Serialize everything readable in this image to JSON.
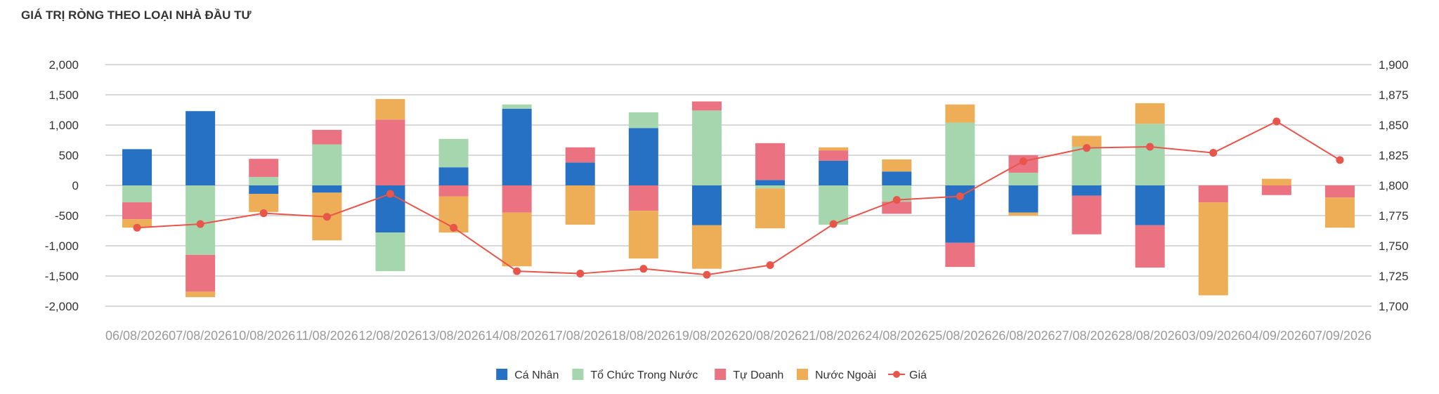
{
  "chart_data": {
    "type": "bar",
    "stacked": true,
    "title": "GIÁ TRỊ RÒNG THEO LOẠI NHÀ ĐẦU TƯ",
    "categories": [
      "06/08/2026",
      "07/08/2026",
      "10/08/2026",
      "11/08/2026",
      "12/08/2026",
      "13/08/2026",
      "14/08/2026",
      "17/08/2026",
      "18/08/2026",
      "19/08/2026",
      "20/08/2026",
      "21/08/2026",
      "24/08/2026",
      "25/08/2026",
      "26/08/2026",
      "27/08/2026",
      "28/08/2026",
      "03/09/2026",
      "04/09/2026",
      "07/09/2026"
    ],
    "ylim": [
      -2000,
      2000
    ],
    "yticks": [
      "2,000",
      "1,500",
      "1,000",
      "500",
      "0",
      "-500",
      "-1,000",
      "-1,500",
      "-2,000"
    ],
    "y2lim": [
      1700,
      1900
    ],
    "y2ticks": [
      "1,900",
      "1,875",
      "1,850",
      "1,825",
      "1,800",
      "1,775",
      "1,750",
      "1,725",
      "1,700"
    ],
    "grid": true,
    "legend_position": "bottom",
    "series": [
      {
        "name": "Cá Nhân",
        "color": "#2771c4",
        "values": [
          600,
          1230,
          -140,
          -120,
          -780,
          300,
          1270,
          380,
          950,
          -660,
          90,
          410,
          230,
          -950,
          -450,
          -170,
          -660,
          0,
          0,
          0
        ]
      },
      {
        "name": "Tổ Chức Trong Nước",
        "color": "#a5d6ae",
        "values": [
          -280,
          -1150,
          140,
          680,
          -640,
          470,
          70,
          0,
          260,
          1240,
          -50,
          -650,
          -270,
          1040,
          210,
          640,
          1020,
          0,
          0,
          0
        ]
      },
      {
        "name": "Tự Doanh",
        "color": "#eb7281",
        "values": [
          -280,
          -610,
          300,
          240,
          1090,
          -180,
          -450,
          250,
          -420,
          150,
          610,
          170,
          -200,
          -400,
          290,
          -640,
          -700,
          -280,
          -160,
          -200
        ]
      },
      {
        "name": "Nước Ngoài",
        "color": "#edae57",
        "values": [
          -140,
          -90,
          -300,
          -790,
          340,
          -600,
          -890,
          -650,
          -790,
          -720,
          -660,
          50,
          200,
          300,
          -50,
          180,
          340,
          -1540,
          110,
          -500
        ]
      }
    ],
    "line_series": {
      "name": "Giá",
      "color": "#e8554a",
      "axis": "right",
      "values": [
        1765,
        1768,
        1777,
        1774,
        1793,
        1765,
        1729,
        1727,
        1731,
        1726,
        1734,
        1768,
        1788,
        1791,
        1820,
        1831,
        1832,
        1827,
        1853,
        1821
      ]
    }
  }
}
